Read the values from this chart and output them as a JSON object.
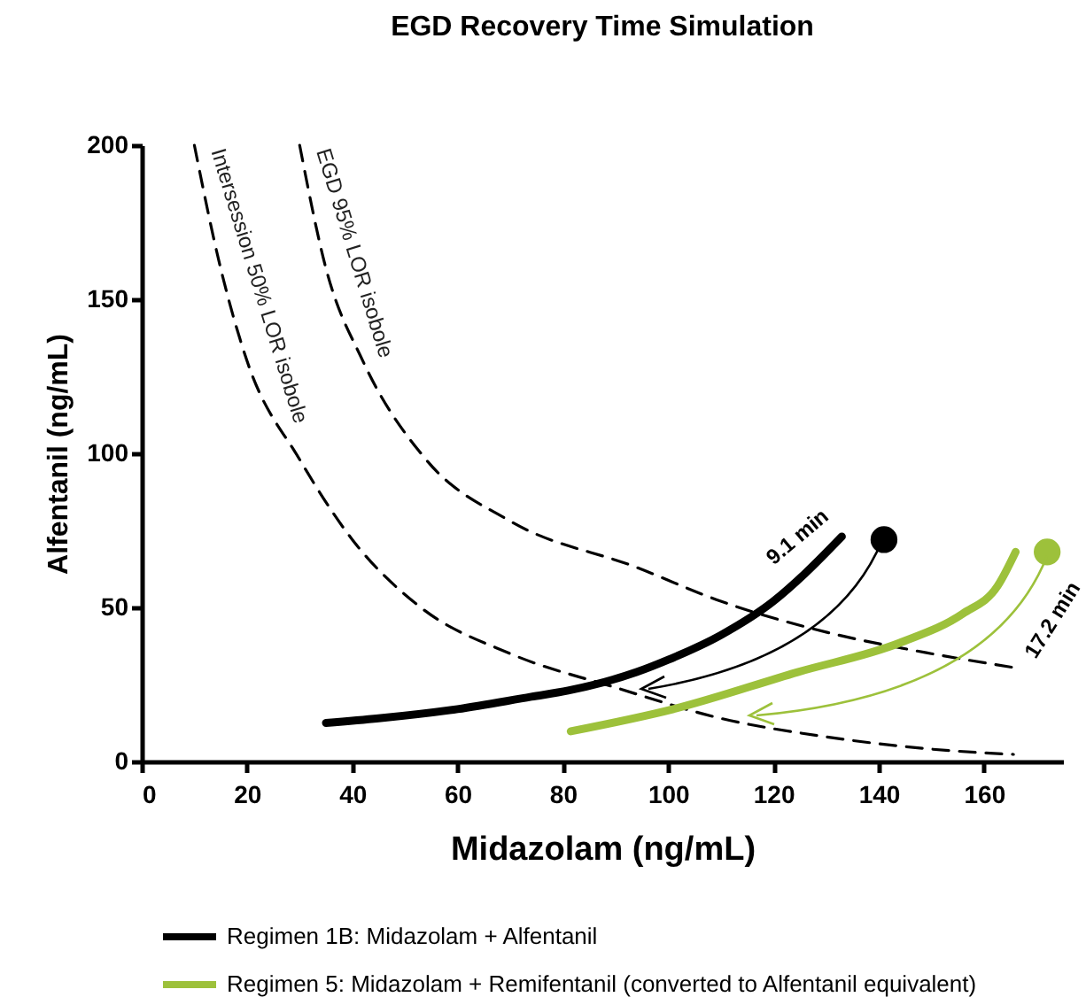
{
  "chart_data": {
    "type": "line",
    "title": "EGD Recovery Time Simulation",
    "xlabel": "Midazolam (ng/mL)",
    "ylabel": "Alfentanil (ng/mL)",
    "xlim": [
      0,
      175
    ],
    "ylim": [
      0,
      200
    ],
    "xticks": [
      0,
      20,
      40,
      60,
      80,
      100,
      120,
      140,
      160
    ],
    "yticks": [
      0,
      50,
      100,
      150,
      200
    ],
    "grid": false,
    "legend": "bottom",
    "annotations": [
      "9.1 min",
      "17.2 min"
    ],
    "series": [
      {
        "name": "Intersession 50% LOR isobole",
        "line_style": "dashed",
        "color": "#000000",
        "x": [
          10,
          15,
          20,
          30,
          40,
          53,
          70,
          90,
          110,
          130,
          150,
          165.6
        ],
        "values": [
          200,
          160,
          130,
          98,
          72,
          50,
          35,
          24,
          14,
          8,
          4,
          2.3
        ]
      },
      {
        "name": "EGD 95% LOR isobole",
        "line_style": "dashed",
        "color": "#000000",
        "x": [
          30,
          35,
          42,
          54,
          70,
          94,
          110,
          130,
          150,
          165.6
        ],
        "values": [
          200,
          160,
          130,
          98,
          78,
          63,
          52,
          42,
          35,
          30.5
        ]
      },
      {
        "name": "Regimen 1B: Midazolam + Alfentanil",
        "line_style": "solid",
        "color": "#000000",
        "x": [
          35,
          45,
          60,
          74,
          81,
          94,
          100,
          110,
          120,
          126,
          133
        ],
        "values": [
          12.5,
          14,
          17,
          21,
          23,
          29,
          33,
          41,
          52,
          61,
          73
        ]
      },
      {
        "name": "Regimen 5: Midazolam + Remifentanil (converted to Alfentanil equivalent)",
        "line_style": "solid",
        "color": "#9dc13b",
        "x": [
          81.5,
          101,
          124.6,
          144,
          156,
          162.6,
          166
        ],
        "values": [
          9.8,
          17,
          29,
          38.5,
          48,
          57,
          68
        ]
      },
      {
        "type": "scatter",
        "marker": "circle",
        "color": "#000000",
        "x": [
          141
        ],
        "values": [
          72
        ]
      },
      {
        "type": "scatter",
        "marker": "circle",
        "color": "#9dc13b",
        "x": [
          172
        ],
        "values": [
          68
        ]
      }
    ]
  }
}
